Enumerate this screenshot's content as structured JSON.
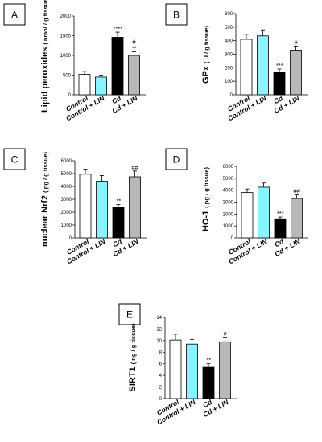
{
  "colors": {
    "control": "#ffffff",
    "control_lin": "#8af3ff",
    "cd": "#000000",
    "cd_lin": "#b8b8b8"
  },
  "chart_data": [
    {
      "type": "bar",
      "panel": "A",
      "ylabel_main": "Lipid peroxides",
      "ylabel_unit": "( nmol / g tissue)",
      "ylim": [
        0,
        2000
      ],
      "yticks": [
        "0",
        "500",
        "1000",
        "1500",
        "2000"
      ],
      "categories": [
        "Control",
        "Control + LIN",
        "Cd",
        "Cd + LIN"
      ],
      "values": [
        520,
        450,
        1460,
        1000
      ],
      "errors": [
        70,
        50,
        130,
        90
      ],
      "significance": [
        [
          "",
          ""
        ],
        [
          "",
          ""
        ],
        [
          "****",
          ""
        ],
        [
          "#",
          "**"
        ]
      ]
    },
    {
      "type": "bar",
      "panel": "B",
      "ylabel_main": "GPx",
      "ylabel_unit": "( U / g tissue)",
      "ylim": [
        0,
        600
      ],
      "yticks": [
        "0",
        "100",
        "200",
        "300",
        "400",
        "500",
        "600"
      ],
      "categories": [
        "Control",
        "Control + LIN",
        "Cd",
        "Cd + LIN"
      ],
      "values": [
        410,
        435,
        170,
        330
      ],
      "errors": [
        35,
        45,
        20,
        30
      ],
      "significance": [
        [
          "",
          ""
        ],
        [
          "",
          ""
        ],
        [
          "***",
          ""
        ],
        [
          "#",
          ""
        ]
      ]
    },
    {
      "type": "bar",
      "panel": "C",
      "ylabel_main": "nuclear Nrf2",
      "ylabel_unit": "( pg / g tissue)",
      "ylim": [
        0,
        6000
      ],
      "yticks": [
        "0",
        "1000",
        "2000",
        "3000",
        "4000",
        "5000",
        "6000"
      ],
      "categories": [
        "Control",
        "Control + LIN",
        "Cd",
        "Cd + LIN"
      ],
      "values": [
        4950,
        4400,
        2350,
        4750
      ],
      "errors": [
        400,
        450,
        250,
        450
      ],
      "significance": [
        [
          "",
          ""
        ],
        [
          "",
          ""
        ],
        [
          "**",
          ""
        ],
        [
          "##",
          ""
        ]
      ]
    },
    {
      "type": "bar",
      "panel": "D",
      "ylabel_main": "HO-1",
      "ylabel_unit": "( pg / g tissue)",
      "ylim": [
        0,
        6000
      ],
      "yticks": [
        "0",
        "1000",
        "2000",
        "3000",
        "4000",
        "5000",
        "6000"
      ],
      "categories": [
        "Control",
        "Control + LIN",
        "Cd",
        "Cd + LIN"
      ],
      "values": [
        3800,
        4250,
        1600,
        3300
      ],
      "errors": [
        300,
        350,
        150,
        300
      ],
      "significance": [
        [
          "",
          ""
        ],
        [
          "",
          ""
        ],
        [
          "***",
          ""
        ],
        [
          "##",
          ""
        ]
      ]
    },
    {
      "type": "bar",
      "panel": "E",
      "ylabel_main": "SIRT1",
      "ylabel_unit": "( ng / g tissue)",
      "ylim": [
        0,
        14
      ],
      "yticks": [
        "0",
        "2",
        "4",
        "6",
        "8",
        "10",
        "12",
        "14"
      ],
      "categories": [
        "Control",
        "Control + LIN",
        "Cd",
        "Cd + LIN"
      ],
      "values": [
        10.1,
        9.4,
        5.4,
        9.8
      ],
      "errors": [
        1.0,
        0.8,
        0.6,
        0.8
      ],
      "significance": [
        [
          "",
          ""
        ],
        [
          "",
          ""
        ],
        [
          "**",
          ""
        ],
        [
          "#",
          ""
        ]
      ]
    }
  ]
}
